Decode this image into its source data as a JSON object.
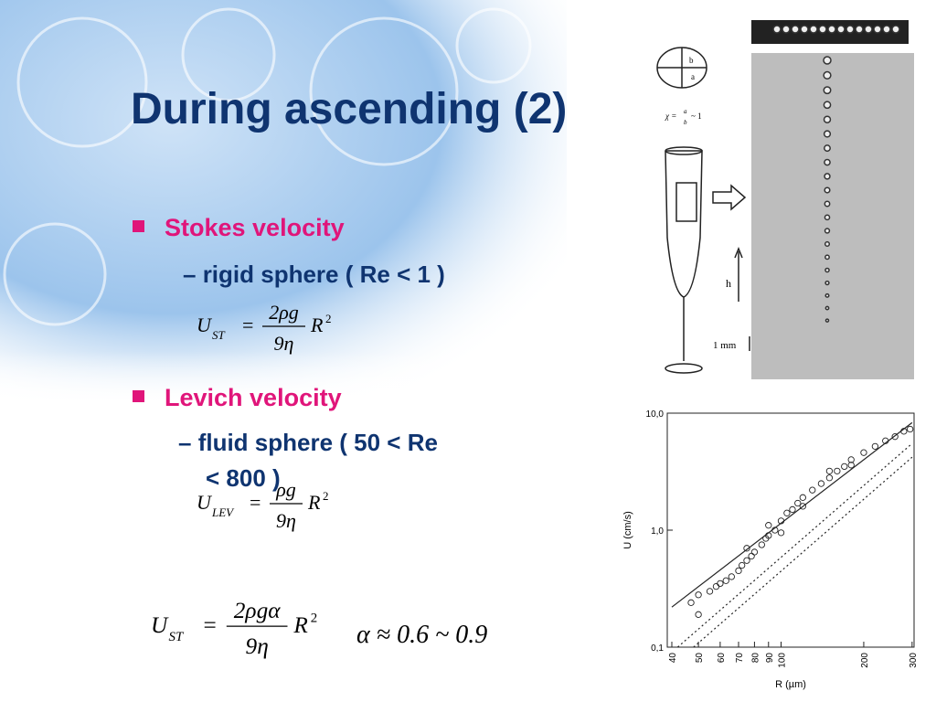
{
  "title": "During ascending (2)",
  "bullets": [
    {
      "text": "Stokes velocity",
      "sub": "rigid sphere ( Re < 1 )"
    },
    {
      "text": "Levich velocity",
      "sub_lines": [
        "fluid sphere ( 50 < Re",
        "< 800 )"
      ]
    }
  ],
  "formulas": [
    {
      "lhs": "U",
      "sub": "ST",
      "eq": "=",
      "num": "2ρg",
      "den": "9η",
      "rhs": "R",
      "sup": "2"
    },
    {
      "lhs": "U",
      "sub": "LEV",
      "eq": "=",
      "num": "ρg",
      "den": "9η",
      "rhs": "R",
      "sup": "2"
    },
    {
      "lhs": "U",
      "sub": "ST",
      "eq": "=",
      "num": "2ρgα",
      "den": "9η",
      "rhs": "R",
      "sup": "2"
    }
  ],
  "approx": "α ≈ 0.6 ~ 0.9",
  "figure": {
    "ellipse_labels": [
      "b",
      "a"
    ],
    "chi": "χ =",
    "chi_num": "a",
    "chi_den": "b",
    "chi_rest": "~ 1",
    "height": "h",
    "scale": "1 mm"
  },
  "chart_data": {
    "type": "scatter",
    "xlabel": "R (µm)",
    "ylabel": "U (cm/s)",
    "xlog": true,
    "ylog": true,
    "xlim": [
      38.5,
      305
    ],
    "ylim": [
      0.1,
      10
    ],
    "xticks": [
      40,
      50,
      60,
      70,
      80,
      90,
      100,
      200,
      300
    ],
    "yticks": [
      {
        "value": 0.1,
        "label": "0,1"
      },
      {
        "value": 1,
        "label": "1,0"
      },
      {
        "value": 10,
        "label": "10,0"
      }
    ],
    "color": "#222222",
    "lines": [
      {
        "style": "solid",
        "x": [
          40,
          300
        ],
        "values": [
          0.22,
          8.3
        ]
      },
      {
        "style": "dotted",
        "x": [
          42,
          300
        ],
        "values": [
          0.1,
          5.5
        ]
      },
      {
        "style": "dotted",
        "x": [
          48,
          300
        ],
        "values": [
          0.1,
          4.2
        ]
      }
    ],
    "points": {
      "x": [
        47,
        50,
        50,
        55,
        58,
        60,
        63,
        66,
        70,
        72,
        75,
        78,
        80,
        85,
        88,
        90,
        95,
        100,
        105,
        110,
        115,
        120,
        130,
        140,
        150,
        160,
        170,
        180,
        200,
        220,
        240,
        260,
        280,
        295,
        75,
        90,
        120,
        150,
        180,
        100
      ],
      "values": [
        0.24,
        0.19,
        0.28,
        0.3,
        0.33,
        0.35,
        0.37,
        0.4,
        0.45,
        0.5,
        0.55,
        0.6,
        0.65,
        0.75,
        0.85,
        0.9,
        1.0,
        1.2,
        1.4,
        1.5,
        1.7,
        1.9,
        2.2,
        2.5,
        2.8,
        3.2,
        3.5,
        4.0,
        4.6,
        5.2,
        5.8,
        6.3,
        7.0,
        7.3,
        0.7,
        1.1,
        1.6,
        3.2,
        3.6,
        0.95
      ]
    }
  }
}
